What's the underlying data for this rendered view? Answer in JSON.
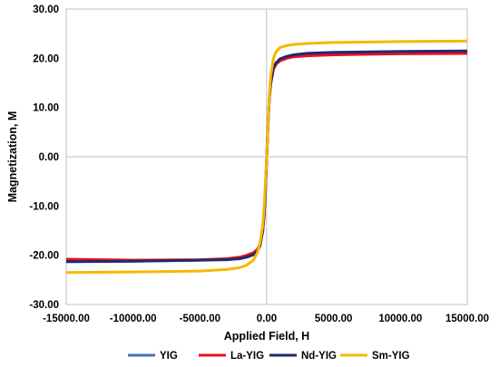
{
  "chart_data": {
    "type": "line",
    "title": "",
    "xlabel": "Applied Field, H",
    "ylabel": "Magnetization, M",
    "xlim": [
      -15000,
      15000
    ],
    "ylim": [
      -30,
      30
    ],
    "x_ticks": [
      "-15000.00",
      "-10000.00",
      "-5000.00",
      "0.00",
      "5000.00",
      "10000.00",
      "15000.00"
    ],
    "y_ticks": [
      "30.00",
      "20.00",
      "10.00",
      "0.00",
      "-10.00",
      "-20.00",
      "-30.00"
    ],
    "grid": false,
    "legend_position": "bottom",
    "series": [
      {
        "name": "YIG",
        "color": "#4472C4",
        "x": [
          -15000,
          -10000,
          -5000,
          -3000,
          -2000,
          -1500,
          -1000,
          -700,
          -500,
          -300,
          -200,
          -100,
          0,
          100,
          200,
          300,
          500,
          700,
          1000,
          1500,
          2000,
          3000,
          5000,
          10000,
          15000
        ],
        "y": [
          -21.3,
          -21.2,
          -21.0,
          -20.8,
          -20.6,
          -20.3,
          -19.8,
          -19.0,
          -18.0,
          -15.0,
          -12.0,
          -7.0,
          0,
          7.0,
          12.0,
          15.0,
          18.0,
          19.0,
          19.8,
          20.3,
          20.6,
          20.9,
          21.1,
          21.3,
          21.4
        ]
      },
      {
        "name": "La-YIG",
        "color": "#E8101E",
        "x": [
          -15000,
          -10000,
          -5000,
          -3000,
          -2000,
          -1500,
          -1000,
          -700,
          -500,
          -300,
          -200,
          -100,
          0,
          100,
          200,
          300,
          500,
          700,
          1000,
          1500,
          2000,
          3000,
          5000,
          10000,
          15000
        ],
        "y": [
          -20.8,
          -21.0,
          -20.9,
          -20.7,
          -20.4,
          -20.0,
          -19.5,
          -18.8,
          -17.8,
          -14.8,
          -11.8,
          -6.8,
          0,
          6.8,
          11.8,
          14.8,
          17.8,
          18.8,
          19.5,
          20.0,
          20.3,
          20.5,
          20.7,
          20.9,
          21.0
        ]
      },
      {
        "name": "Nd-YIG",
        "color": "#1F2A6E",
        "x": [
          -15000,
          -10000,
          -5000,
          -3000,
          -2000,
          -1500,
          -1000,
          -700,
          -500,
          -300,
          -200,
          -100,
          0,
          100,
          200,
          300,
          500,
          700,
          1000,
          1500,
          2000,
          3000,
          5000,
          10000,
          15000
        ],
        "y": [
          -21.3,
          -21.2,
          -21.0,
          -20.9,
          -20.7,
          -20.4,
          -19.9,
          -19.1,
          -18.1,
          -15.1,
          -12.1,
          -7.1,
          0,
          7.1,
          12.1,
          15.1,
          18.1,
          19.1,
          19.9,
          20.4,
          20.7,
          21.0,
          21.2,
          21.4,
          21.5
        ]
      },
      {
        "name": "Sm-YIG",
        "color": "#F5B800",
        "x": [
          -15000,
          -10000,
          -5000,
          -3000,
          -2000,
          -1500,
          -1000,
          -700,
          -500,
          -300,
          -200,
          -100,
          0,
          100,
          200,
          300,
          500,
          700,
          1000,
          1500,
          2000,
          3000,
          5000,
          10000,
          15000
        ],
        "y": [
          -23.5,
          -23.4,
          -23.2,
          -22.9,
          -22.5,
          -22.0,
          -21.0,
          -19.5,
          -17.5,
          -14.0,
          -10.5,
          -5.5,
          0,
          7.0,
          12.5,
          16.5,
          20.0,
          21.3,
          22.2,
          22.6,
          22.8,
          23.0,
          23.2,
          23.4,
          23.5
        ]
      }
    ]
  }
}
